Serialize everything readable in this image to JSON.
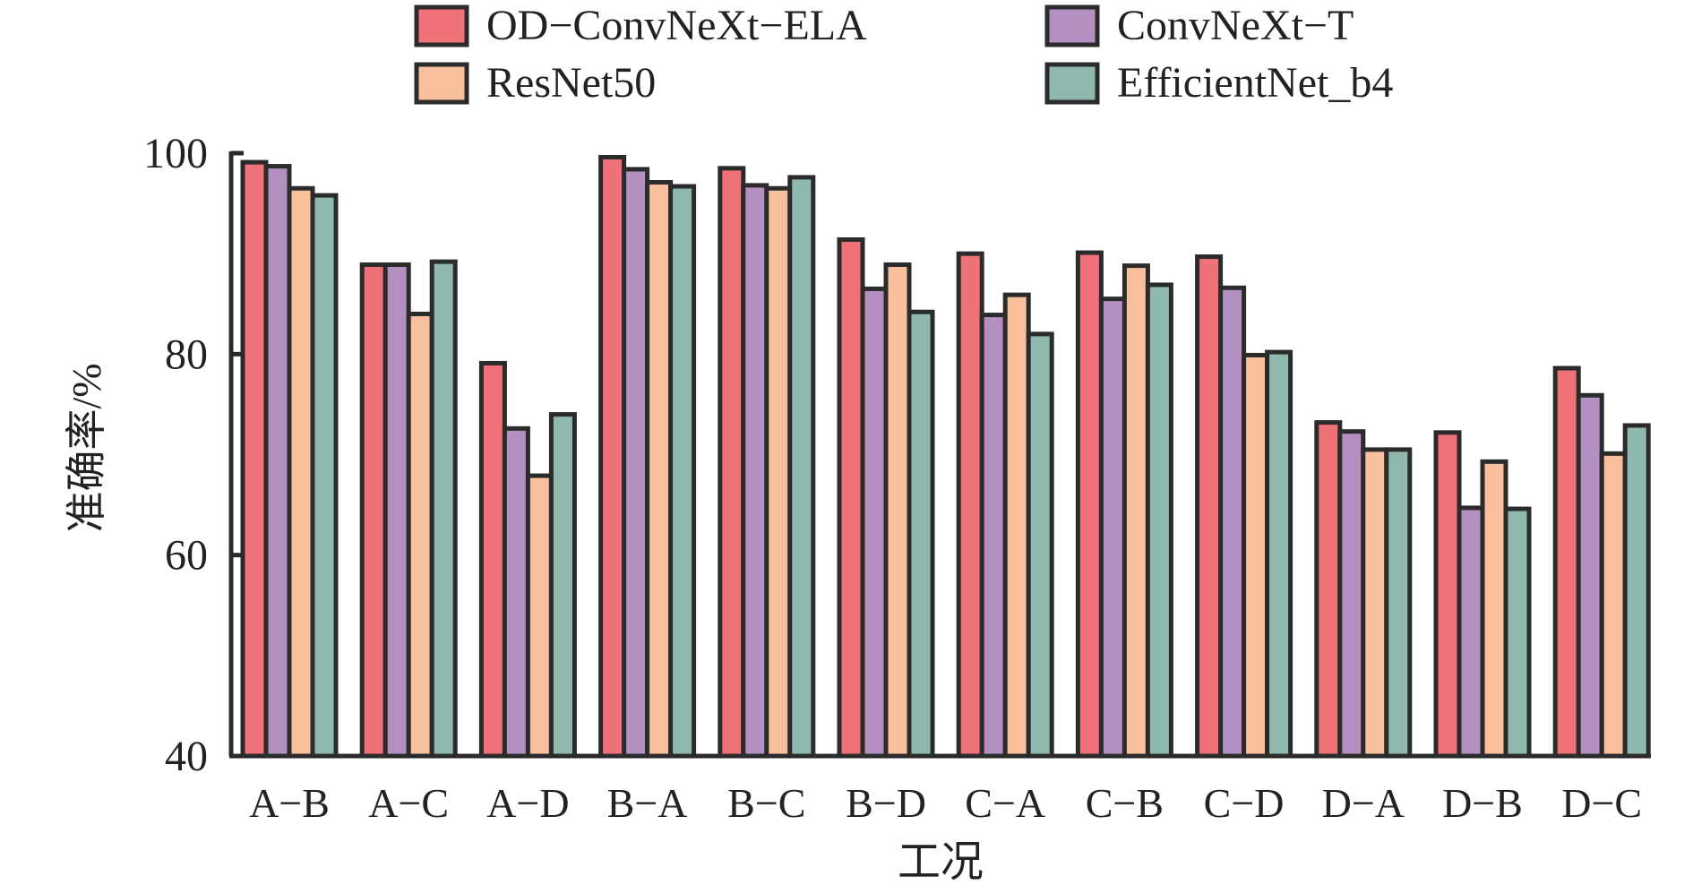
{
  "chart_data": {
    "type": "bar",
    "title": "",
    "xlabel": "工况",
    "ylabel": "准确率/%",
    "ylim": [
      40,
      100
    ],
    "yticks": [
      40,
      60,
      80,
      100
    ],
    "grid": false,
    "legend_position": "top",
    "categories": [
      "A−B",
      "A−C",
      "A−D",
      "B−A",
      "B−C",
      "B−D",
      "C−A",
      "C−B",
      "C−D",
      "D−A",
      "D−B",
      "D−C"
    ],
    "series": [
      {
        "name": "OD−ConvNeXt−ELA",
        "color": "#EF7278",
        "values": [
          99.1,
          88.9,
          79.1,
          99.6,
          98.5,
          91.4,
          90.0,
          90.1,
          89.7,
          73.2,
          72.2,
          78.6
        ]
      },
      {
        "name": "ConvNeXt−T",
        "color": "#B48FC1",
        "values": [
          98.7,
          88.9,
          72.6,
          98.4,
          96.8,
          86.5,
          83.9,
          85.5,
          86.6,
          72.3,
          64.7,
          75.9
        ]
      },
      {
        "name": "ResNet50",
        "color": "#F9C09E",
        "values": [
          96.5,
          84.0,
          67.9,
          97.1,
          96.5,
          88.9,
          85.9,
          88.8,
          79.9,
          70.5,
          69.3,
          70.1
        ]
      },
      {
        "name": "EfficientNet_b4",
        "color": "#8FB8AF",
        "values": [
          95.8,
          89.2,
          74.0,
          96.7,
          97.6,
          84.2,
          82.0,
          86.9,
          80.2,
          70.5,
          64.6,
          72.9
        ]
      }
    ]
  }
}
